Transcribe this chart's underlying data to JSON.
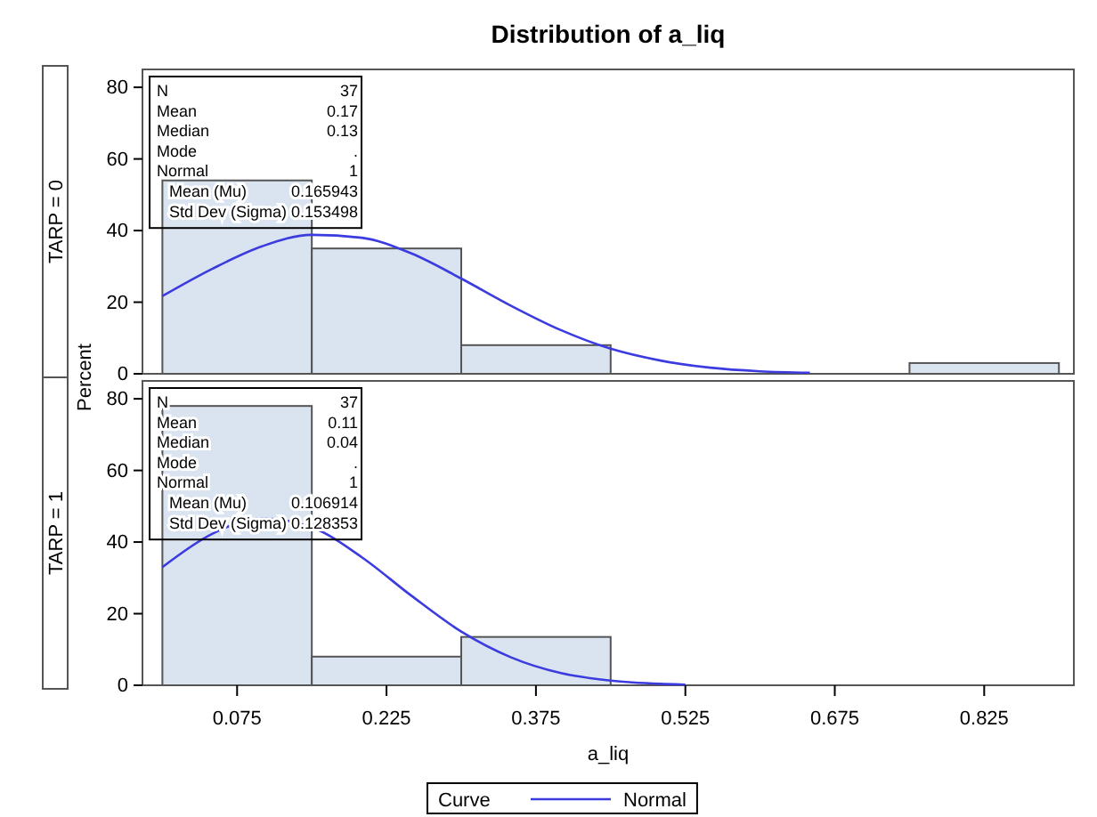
{
  "chart_data": [
    {
      "type": "histogram",
      "title": "Distribution of a_liq",
      "ylabel": "Percent",
      "annotations": [
        "TARP = 0",
        "N",
        "37",
        "Mean",
        "0.17",
        "Median",
        "0.13",
        "Mode",
        ".",
        "Normal",
        "1",
        "Mean (Mu)",
        "0.165943",
        "Std Dev (Sigma)",
        "0.153498"
      ],
      "bins": [
        0,
        0.15,
        0.3,
        0.45,
        0.6,
        0.75,
        0.9
      ],
      "series": [
        {
          "color": "#dae3f0",
          "values": [
            54,
            35,
            8,
            0,
            0,
            3
          ]
        },
        {
          "type": "line",
          "color": "#3b3be0",
          "x": [
            0,
            0.05,
            0.1,
            0.15,
            0.2,
            0.25,
            0.3,
            0.35,
            0.4,
            0.45,
            0.5,
            0.55,
            0.6,
            0.65
          ],
          "values": [
            21.7,
            29.3,
            35.6,
            38.8,
            38.0,
            33.6,
            26.6,
            19.0,
            12.2,
            7.0,
            3.7,
            1.7,
            0.7,
            0.3
          ]
        }
      ],
      "xlim": [
        -0.02,
        0.915
      ],
      "xticks": [
        0.075,
        0.225,
        0.375,
        0.525,
        0.675,
        0.825
      ],
      "ylim": [
        0,
        85
      ],
      "yticks": [
        0,
        20,
        40,
        60,
        80
      ],
      "tick_labels": "y",
      "legend": false
    },
    {
      "type": "histogram",
      "xlabel": "a_liq",
      "legend_title": "Curve",
      "annotations": [
        "TARP = 1",
        "N",
        "37",
        "Mean",
        "0.11",
        "Median",
        "0.04",
        "Mode",
        ".",
        "Normal",
        "1",
        "Mean (Mu)",
        "0.106914",
        "Std Dev (Sigma)",
        "0.128353"
      ],
      "bins": [
        0,
        0.15,
        0.3,
        0.45
      ],
      "series": [
        {
          "color": "#dae3f0",
          "values": [
            78,
            8,
            13.5
          ]
        },
        {
          "type": "line",
          "name": "Normal",
          "color": "#3b3be0",
          "x": [
            0,
            0.05,
            0.1,
            0.15,
            0.2,
            0.25,
            0.3,
            0.35,
            0.4,
            0.45,
            0.5,
            0.525
          ],
          "values": [
            33.0,
            42.3,
            46.6,
            44.1,
            35.8,
            25.0,
            15.0,
            7.8,
            3.4,
            1.3,
            0.4,
            0.2
          ]
        }
      ],
      "xlim": [
        -0.02,
        0.915
      ],
      "xticks": [
        0.075,
        0.225,
        0.375,
        0.525,
        0.675,
        0.825
      ],
      "ylim": [
        0,
        85
      ],
      "yticks": [
        0,
        20,
        40,
        60,
        80
      ],
      "legend": "bottom"
    }
  ]
}
